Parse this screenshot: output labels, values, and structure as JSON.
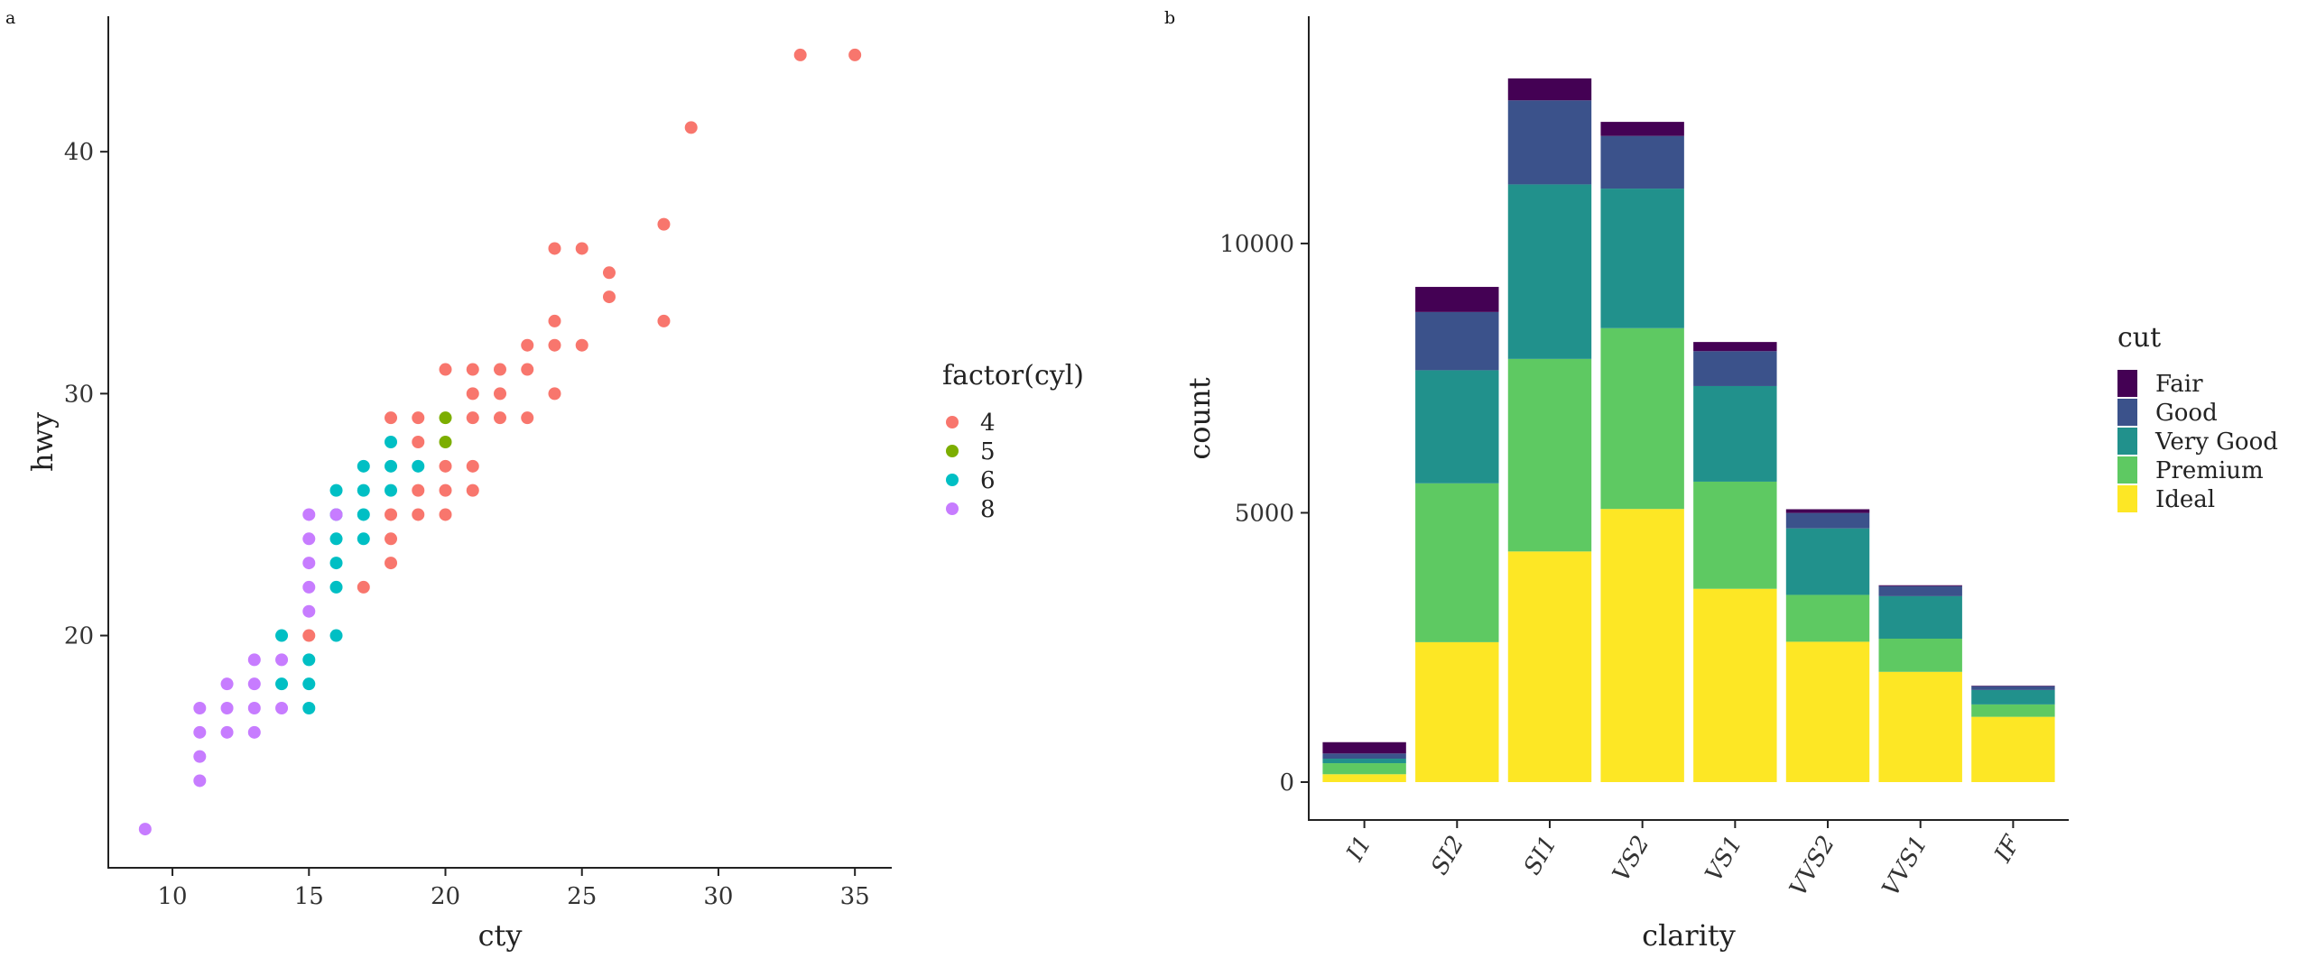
{
  "panels": [
    {
      "tag": "a",
      "chart_data": {
        "type": "scatter",
        "xlabel": "cty",
        "ylabel": "hwy",
        "xlim": [
          7.65,
          36.35
        ],
        "ylim": [
          10.4,
          45.6
        ],
        "xticks": [
          10,
          15,
          20,
          25,
          30,
          35
        ],
        "yticks": [
          20,
          30,
          40
        ],
        "grid": false,
        "legend": {
          "title": "factor(cyl)",
          "position": "right"
        },
        "series": [
          {
            "name": "4",
            "color": "#F8766D",
            "points": [
              [
                33,
                44
              ],
              [
                35,
                44
              ],
              [
                29,
                41
              ],
              [
                28,
                37
              ],
              [
                24,
                36
              ],
              [
                25,
                36
              ],
              [
                26,
                35
              ],
              [
                26,
                34
              ],
              [
                24,
                33
              ],
              [
                28,
                33
              ],
              [
                23,
                32
              ],
              [
                24,
                32
              ],
              [
                25,
                32
              ],
              [
                20,
                31
              ],
              [
                21,
                31
              ],
              [
                22,
                31
              ],
              [
                23,
                31
              ],
              [
                21,
                30
              ],
              [
                22,
                30
              ],
              [
                24,
                30
              ],
              [
                18,
                29
              ],
              [
                19,
                29
              ],
              [
                21,
                29
              ],
              [
                22,
                29
              ],
              [
                23,
                29
              ],
              [
                19,
                28
              ],
              [
                20,
                27
              ],
              [
                21,
                27
              ],
              [
                19,
                26
              ],
              [
                20,
                26
              ],
              [
                21,
                26
              ],
              [
                18,
                25
              ],
              [
                19,
                25
              ],
              [
                20,
                25
              ],
              [
                18,
                24
              ],
              [
                18,
                23
              ],
              [
                17,
                22
              ],
              [
                15,
                20
              ]
            ]
          },
          {
            "name": "5",
            "color": "#7CAE00",
            "points": [
              [
                20,
                29
              ],
              [
                20,
                28
              ]
            ]
          },
          {
            "name": "6",
            "color": "#00BFC4",
            "points": [
              [
                18,
                28
              ],
              [
                17,
                27
              ],
              [
                18,
                27
              ],
              [
                19,
                27
              ],
              [
                16,
                26
              ],
              [
                17,
                26
              ],
              [
                18,
                26
              ],
              [
                16,
                25
              ],
              [
                17,
                25
              ],
              [
                16,
                24
              ],
              [
                17,
                24
              ],
              [
                16,
                23
              ],
              [
                16,
                22
              ],
              [
                14,
                20
              ],
              [
                16,
                20
              ],
              [
                15,
                19
              ],
              [
                14,
                18
              ],
              [
                15,
                18
              ],
              [
                15,
                17
              ]
            ]
          },
          {
            "name": "8",
            "color": "#C77CFF",
            "points": [
              [
                15,
                25
              ],
              [
                16,
                25
              ],
              [
                15,
                24
              ],
              [
                15,
                23
              ],
              [
                15,
                22
              ],
              [
                15,
                21
              ],
              [
                13,
                19
              ],
              [
                14,
                19
              ],
              [
                12,
                18
              ],
              [
                13,
                18
              ],
              [
                11,
                17
              ],
              [
                12,
                17
              ],
              [
                13,
                17
              ],
              [
                14,
                17
              ],
              [
                11,
                16
              ],
              [
                12,
                16
              ],
              [
                13,
                16
              ],
              [
                11,
                15
              ],
              [
                11,
                14
              ],
              [
                9,
                12
              ]
            ]
          }
        ]
      }
    },
    {
      "tag": "b",
      "chart_data": {
        "type": "bar",
        "stacked": true,
        "xlabel": "clarity",
        "ylabel": "count",
        "ylim": [
          0,
          13700
        ],
        "yticks": [
          0,
          5000,
          10000
        ],
        "grid": false,
        "legend": {
          "title": "cut",
          "position": "right"
        },
        "categories": [
          "I1",
          "SI2",
          "SI1",
          "VS2",
          "VS1",
          "VVS2",
          "VVS1",
          "IF"
        ],
        "series": [
          {
            "name": "Ideal",
            "color": "#FDE725",
            "values": [
              146,
              2598,
              4282,
              5071,
              3589,
              2606,
              2047,
              1212
            ]
          },
          {
            "name": "Premium",
            "color": "#5EC962",
            "values": [
              205,
              2949,
              3575,
              3357,
              1989,
              870,
              616,
              230
            ]
          },
          {
            "name": "Very Good",
            "color": "#21918C",
            "values": [
              84,
              2100,
              3240,
              2591,
              1775,
              1235,
              789,
              268
            ]
          },
          {
            "name": "Good",
            "color": "#3B528B",
            "values": [
              96,
              1081,
              1560,
              978,
              648,
              286,
              186,
              71
            ]
          },
          {
            "name": "Fair",
            "color": "#440154",
            "values": [
              210,
              466,
              408,
              261,
              170,
              69,
              17,
              9
            ]
          }
        ]
      }
    }
  ]
}
